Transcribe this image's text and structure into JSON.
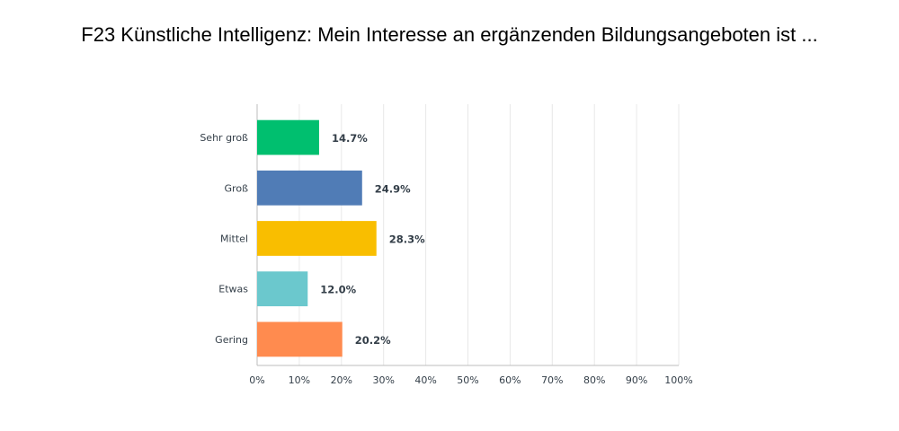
{
  "chart_data": {
    "type": "bar",
    "orientation": "horizontal",
    "title": "F23 Künstliche Intelligenz: Mein Interesse an ergänzenden Bildungsangeboten ist ...",
    "categories": [
      "Sehr groß",
      "Groß",
      "Mittel",
      "Etwas",
      "Gering"
    ],
    "values": [
      14.7,
      24.9,
      28.3,
      12.0,
      20.2
    ],
    "value_labels": [
      "14.7%",
      "24.9%",
      "28.3%",
      "12.0%",
      "20.2%"
    ],
    "colors": [
      "#00bf6f",
      "#507cb6",
      "#f9be00",
      "#6bc8cd",
      "#ff8b4f"
    ],
    "xlim": [
      0,
      100
    ],
    "xticks": [
      "0%",
      "10%",
      "20%",
      "30%",
      "40%",
      "50%",
      "60%",
      "70%",
      "80%",
      "90%",
      "100%"
    ],
    "grid": true,
    "legend": "none"
  }
}
